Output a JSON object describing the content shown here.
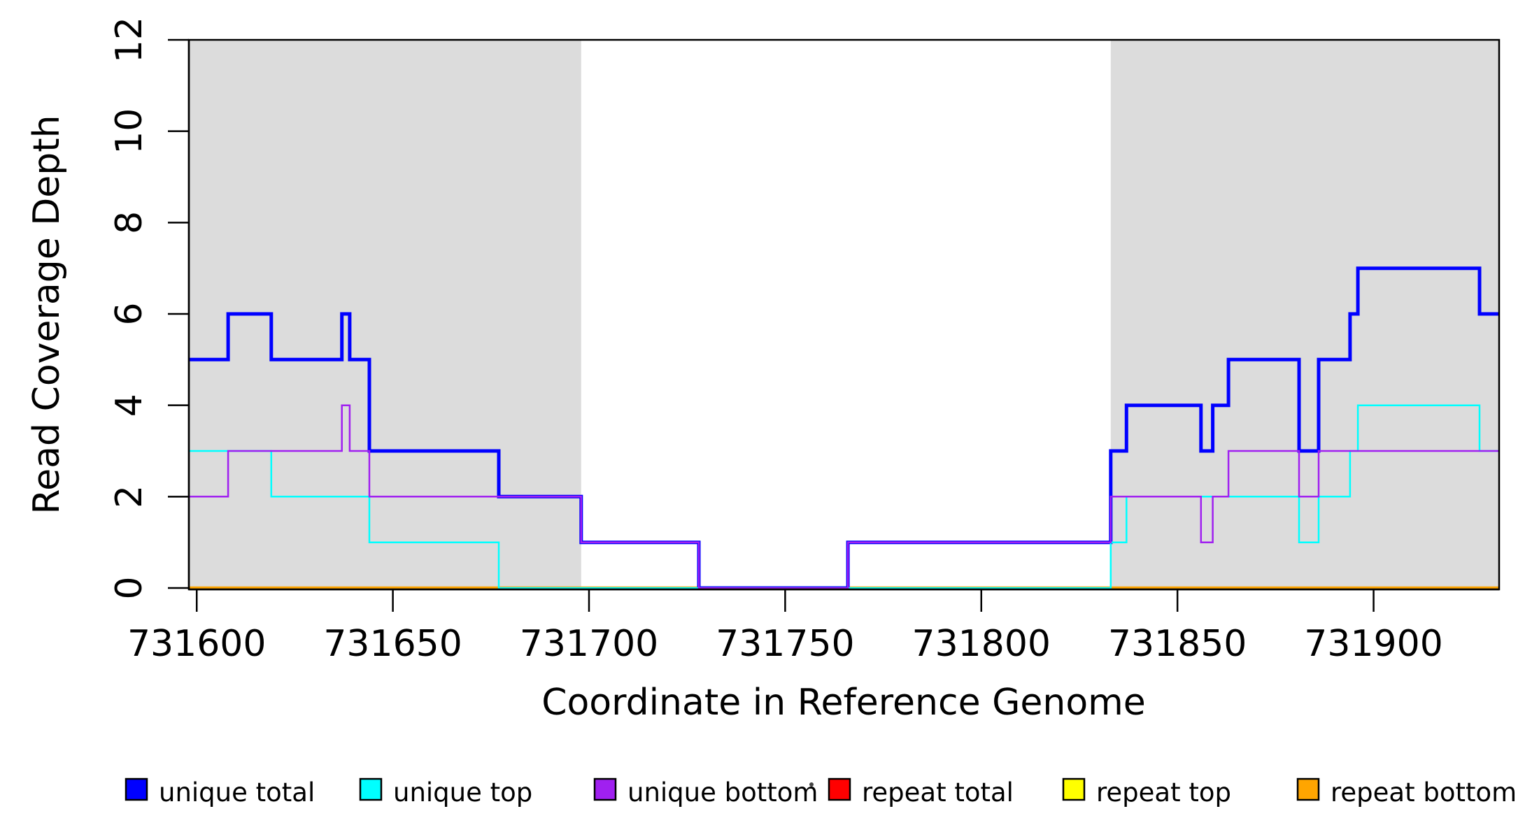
{
  "figure": {
    "background": "#FFFFFF",
    "plot_background": "#FFFFFF"
  },
  "chart_data": {
    "type": "line",
    "subtype": "step",
    "title": "",
    "xlabel": "Coordinate in Reference Genome",
    "ylabel": "Read Coverage Depth",
    "xlim": [
      731598,
      731932
    ],
    "ylim": [
      0,
      12
    ],
    "xticks": [
      731600,
      731650,
      731700,
      731750,
      731800,
      731850,
      731900
    ],
    "yticks": [
      0,
      2,
      4,
      6,
      8,
      10,
      12
    ],
    "grid": false,
    "box": true,
    "shaded_regions": {
      "color": "#DCDCDC",
      "ranges": [
        [
          731598,
          731698
        ],
        [
          731833,
          731932
        ]
      ]
    },
    "series": [
      {
        "name": "unique total",
        "color": "#0000FF",
        "line_width": 5,
        "points": [
          [
            731598,
            5
          ],
          [
            731608,
            6
          ],
          [
            731619,
            5
          ],
          [
            731637,
            6
          ],
          [
            731639,
            5
          ],
          [
            731644,
            3
          ],
          [
            731677,
            2
          ],
          [
            731698,
            1
          ],
          [
            731728,
            0
          ],
          [
            731766,
            1
          ],
          [
            731833,
            3
          ],
          [
            731837,
            4
          ],
          [
            731856,
            3
          ],
          [
            731859,
            4
          ],
          [
            731863,
            5
          ],
          [
            731881,
            3
          ],
          [
            731886,
            5
          ],
          [
            731894,
            6
          ],
          [
            731896,
            7
          ],
          [
            731927,
            6
          ],
          [
            731932,
            6
          ]
        ]
      },
      {
        "name": "unique top",
        "color": "#00FFFF",
        "line_width": 2.5,
        "points": [
          [
            731598,
            3
          ],
          [
            731619,
            2
          ],
          [
            731644,
            1
          ],
          [
            731677,
            0
          ],
          [
            731833,
            1
          ],
          [
            731837,
            2
          ],
          [
            731881,
            1
          ],
          [
            731886,
            2
          ],
          [
            731894,
            3
          ],
          [
            731896,
            4
          ],
          [
            731927,
            3
          ],
          [
            731932,
            3
          ]
        ]
      },
      {
        "name": "unique bottom",
        "color": "#A020F0",
        "line_width": 2.5,
        "points": [
          [
            731598,
            2
          ],
          [
            731608,
            3
          ],
          [
            731637,
            4
          ],
          [
            731639,
            3
          ],
          [
            731644,
            2
          ],
          [
            731698,
            1
          ],
          [
            731728,
            0
          ],
          [
            731766,
            1
          ],
          [
            731833,
            2
          ],
          [
            731856,
            1
          ],
          [
            731859,
            2
          ],
          [
            731863,
            3
          ],
          [
            731881,
            2
          ],
          [
            731886,
            3
          ],
          [
            731932,
            3
          ]
        ]
      },
      {
        "name": "repeat total",
        "color": "#FF0000",
        "line_width": 2.5,
        "points": [
          [
            731598,
            0
          ],
          [
            731932,
            0
          ]
        ]
      },
      {
        "name": "repeat top",
        "color": "#FFFF00",
        "line_width": 2.5,
        "points": [
          [
            731598,
            0
          ],
          [
            731932,
            0
          ]
        ]
      },
      {
        "name": "repeat bottom",
        "color": "#FFA500",
        "line_width": 4.5,
        "points": [
          [
            731598,
            0
          ],
          [
            731932,
            0
          ]
        ]
      }
    ],
    "draw_order": [
      "repeat total",
      "repeat top",
      "repeat bottom",
      "unique total",
      "unique top",
      "unique bottom"
    ],
    "legend": {
      "position": "bottom",
      "entries": [
        {
          "label": "unique total",
          "color": "#0000FF"
        },
        {
          "label": "unique top",
          "color": "#00FFFF"
        },
        {
          "label": "unique bottom",
          "color": "#A020F0"
        },
        {
          "label": "repeat total",
          "color": "#FF0000"
        },
        {
          "label": "repeat top",
          "color": "#FFFF00"
        },
        {
          "label": "repeat bottom",
          "color": "#FFA500"
        }
      ]
    }
  }
}
